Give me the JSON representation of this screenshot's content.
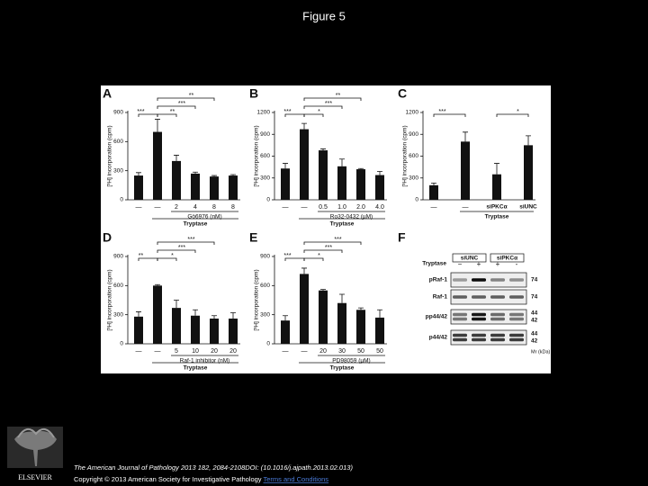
{
  "title": "Figure 5",
  "chart_data": [
    {
      "type": "bar",
      "panel": "A",
      "ylabel": "[³H] incorporation (cpm)",
      "categories": [
        "—",
        "—",
        "2",
        "4",
        "8",
        "8"
      ],
      "values": [
        250,
        700,
        400,
        270,
        240,
        250
      ],
      "errors": [
        30,
        130,
        60,
        15,
        10,
        10
      ],
      "ylim": [
        0,
        900
      ],
      "yticks": [
        0,
        300,
        600,
        900
      ],
      "xlabel": "Gö6976 (nM)",
      "group_label": "Tryptase",
      "annotations": [
        "***",
        "**",
        "***",
        "**"
      ],
      "color": "#111111"
    },
    {
      "type": "bar",
      "panel": "B",
      "ylabel": "[³H] incorporation (cpm)",
      "categories": [
        "—",
        "—",
        "0.5",
        "1.0",
        "2.0",
        "4.0"
      ],
      "values": [
        430,
        970,
        680,
        460,
        420,
        340
      ],
      "errors": [
        70,
        80,
        20,
        100,
        10,
        50
      ],
      "ylim": [
        0,
        1200
      ],
      "yticks": [
        0,
        300,
        600,
        900,
        1200
      ],
      "xlabel": "Ro32-0432 (µM)",
      "group_label": "Tryptase",
      "annotations": [
        "***",
        "*",
        "***",
        "**"
      ],
      "color": "#111111"
    },
    {
      "type": "bar",
      "panel": "C",
      "ylabel": "[³H] incorporation (cpm)",
      "categories": [
        "—",
        "—",
        "siPKCα",
        "siUNC"
      ],
      "values": [
        200,
        800,
        350,
        750
      ],
      "errors": [
        30,
        130,
        150,
        130
      ],
      "ylim": [
        0,
        1200
      ],
      "yticks": [
        0,
        300,
        600,
        900,
        1200
      ],
      "group_label": "Tryptase",
      "annotations": [
        "***",
        "*"
      ],
      "color": "#111111"
    },
    {
      "type": "bar",
      "panel": "D",
      "ylabel": "[³H] incorporation (cpm)",
      "categories": [
        "—",
        "—",
        "5",
        "10",
        "20",
        "20"
      ],
      "values": [
        280,
        600,
        370,
        290,
        260,
        260
      ],
      "errors": [
        50,
        10,
        80,
        60,
        30,
        60
      ],
      "ylim": [
        0,
        900
      ],
      "yticks": [
        0,
        300,
        600,
        900
      ],
      "xlabel": "Raf-1 inhibitor (nM)",
      "group_label": "Tryptase",
      "annotations": [
        "**",
        "*",
        "***",
        "***"
      ],
      "color": "#111111"
    },
    {
      "type": "bar",
      "panel": "E",
      "ylabel": "[³H] incorporation (cpm)",
      "categories": [
        "—",
        "—",
        "20",
        "30",
        "50",
        "50"
      ],
      "values": [
        240,
        720,
        550,
        420,
        350,
        270
      ],
      "errors": [
        50,
        60,
        10,
        90,
        20,
        80
      ],
      "ylim": [
        0,
        900
      ],
      "yticks": [
        0,
        300,
        600,
        900
      ],
      "xlabel": "PD98059 (µM)",
      "group_label": "Tryptase",
      "annotations": [
        "***",
        "*",
        "***",
        "***"
      ],
      "color": "#111111"
    }
  ],
  "blot": {
    "panel": "F",
    "treatment_label": "Tryptase",
    "groups": [
      "siUNC",
      "siPKCα"
    ],
    "lanes": [
      "−",
      "+",
      "+",
      "-"
    ],
    "rows": [
      {
        "name": "pRaf-1",
        "mw": [
          "74"
        ]
      },
      {
        "name": "Raf-1",
        "mw": [
          "74"
        ]
      },
      {
        "name": "pp44/42",
        "mw": [
          "44",
          "42"
        ]
      },
      {
        "name": "p44/42",
        "mw": [
          "44",
          "42"
        ]
      }
    ],
    "mw_unit": "Mr (kDa)"
  },
  "footer": {
    "citation": "The American Journal of Pathology 2013 182, 2084-2108DOI: (10.1016/j.ajpath.2013.02.013)",
    "copyright": "Copyright © 2013 American Society for Investigative Pathology",
    "link": "Terms and Conditions"
  },
  "logo": "ELSEVIER"
}
